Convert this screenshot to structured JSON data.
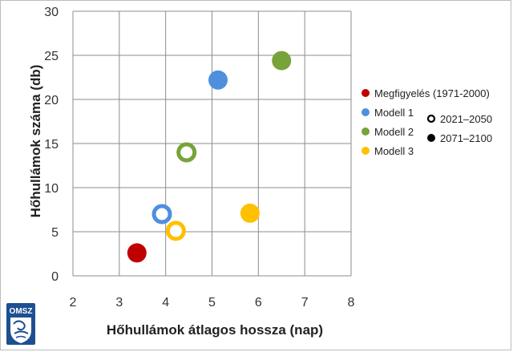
{
  "chart_data": {
    "type": "scatter",
    "xlabel": "Hőhullámok átlagos hossza (nap)",
    "ylabel": "Hőhullámok száma (db)",
    "xlim": [
      2,
      8
    ],
    "ylim": [
      0,
      30
    ],
    "x_ticks": [
      "2",
      "3",
      "4",
      "5",
      "6",
      "7",
      "8"
    ],
    "y_ticks": [
      "0",
      "5",
      "10",
      "15",
      "20",
      "25",
      "30"
    ],
    "grid": true,
    "legend_position": "right",
    "series": [
      {
        "name": "Megfigyelés (1971-2000)",
        "color": "#c00000",
        "points": [
          {
            "x": 3.38,
            "y": 2.6,
            "style": "filled"
          }
        ]
      },
      {
        "name": "Modell 1",
        "color": "#4f8fde",
        "points": [
          {
            "x": 3.92,
            "y": 7.0,
            "style": "hollow"
          },
          {
            "x": 5.13,
            "y": 22.2,
            "style": "filled"
          }
        ]
      },
      {
        "name": "Modell 2",
        "color": "#77a33a",
        "points": [
          {
            "x": 4.45,
            "y": 14.0,
            "style": "hollow"
          },
          {
            "x": 6.5,
            "y": 24.4,
            "style": "filled"
          }
        ]
      },
      {
        "name": "Modell 3",
        "color": "#ffc000",
        "points": [
          {
            "x": 4.22,
            "y": 5.1,
            "style": "hollow"
          },
          {
            "x": 5.82,
            "y": 7.1,
            "style": "filled"
          }
        ]
      }
    ],
    "period_legend": [
      {
        "label": "2021–2050",
        "style": "hollow"
      },
      {
        "label": "2071–2100",
        "style": "filled"
      }
    ]
  },
  "logo": {
    "text": "OMSZ"
  }
}
